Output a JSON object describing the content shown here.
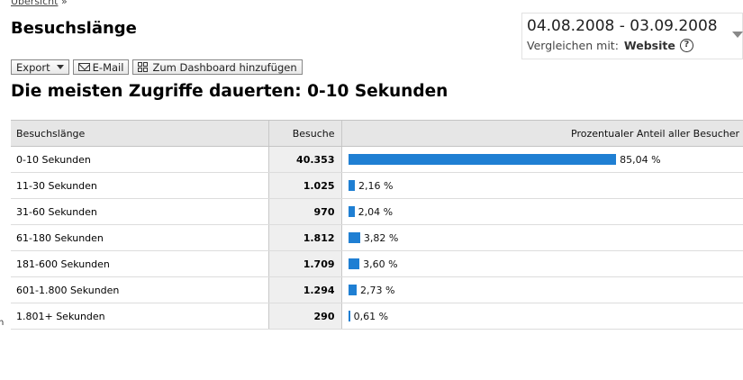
{
  "breadcrumb": {
    "link": "Übersicht",
    "sep": "»"
  },
  "page_title": "Besuchslänge",
  "date": {
    "range": "04.08.2008 - 03.09.2008",
    "compare_label": "Vergleichen mit:",
    "compare_value": "Website",
    "help": "?"
  },
  "toolbar": {
    "export": "Export",
    "email": "E-Mail",
    "dashboard": "Zum Dashboard hinzufügen"
  },
  "subheading": "Die meisten Zugriffe dauerten: 0-10 Sekunden",
  "table": {
    "headers": [
      "Besuchslänge",
      "Besuche",
      "Prozentualer Anteil aller Besucher"
    ],
    "rows": [
      {
        "label": "0-10 Sekunden",
        "visits": "40.353",
        "pct_text": "85,04 %",
        "pct": 85.04
      },
      {
        "label": "11-30 Sekunden",
        "visits": "1.025",
        "pct_text": "2,16 %",
        "pct": 2.16
      },
      {
        "label": "31-60 Sekunden",
        "visits": "970",
        "pct_text": "2,04 %",
        "pct": 2.04
      },
      {
        "label": "61-180 Sekunden",
        "visits": "1.812",
        "pct_text": "3,82 %",
        "pct": 3.82
      },
      {
        "label": "181-600 Sekunden",
        "visits": "1.709",
        "pct_text": "3,60 %",
        "pct": 3.6
      },
      {
        "label": "601-1.800 Sekunden",
        "visits": "1.294",
        "pct_text": "2,73 %",
        "pct": 2.73
      },
      {
        "label": "1.801+ Sekunden",
        "visits": "290",
        "pct_text": "0,61 %",
        "pct": 0.61
      }
    ]
  },
  "colors": {
    "bar": "#1f7fd3",
    "header_bg": "#e6e6e6"
  },
  "edge_text": "n"
}
